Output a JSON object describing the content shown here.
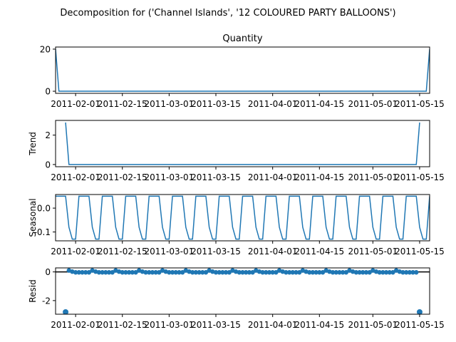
{
  "chart_data": {
    "type": "line",
    "suptitle": "Decomposition for ('Channel Islands', '12 COLOURED PARTY BALLOONS')",
    "x_start": "2011-01-26",
    "x_end": "2011-05-18",
    "x_ticks": [
      "2011-02-01",
      "2011-02-15",
      "2011-03-01",
      "2011-03-15",
      "2011-04-01",
      "2011-04-15",
      "2011-05-01",
      "2011-05-15"
    ],
    "line_color": "#1f77b4",
    "panels": [
      {
        "kind": "line",
        "title": "Quantity",
        "ylabel": "",
        "ylim": [
          -1,
          21
        ],
        "yticks": [
          0,
          20
        ],
        "series": {
          "x": [
            "2011-01-26",
            "2011-01-27",
            "2011-05-17",
            "2011-05-18"
          ],
          "y": [
            20,
            0,
            0,
            20
          ]
        }
      },
      {
        "kind": "line",
        "title": "",
        "ylabel": "Trend",
        "ylim": [
          -0.15,
          3.0
        ],
        "yticks": [
          0,
          2
        ],
        "series": {
          "x": [
            "2011-01-29",
            "2011-01-30",
            "2011-05-14",
            "2011-05-15"
          ],
          "y": [
            2.86,
            0,
            0,
            2.86
          ]
        }
      },
      {
        "kind": "seasonal",
        "title": "",
        "ylabel": "Seasonal",
        "ylim": [
          -0.137,
          0.057
        ],
        "yticks": [
          0.0,
          -0.1
        ],
        "period": 7,
        "first_high_date": "2011-01-26",
        "pattern": [
          0.05,
          0.05,
          0.05,
          0.05,
          -0.08,
          -0.13,
          -0.13
        ]
      },
      {
        "kind": "resid",
        "title": "",
        "ylabel": "Resid",
        "ylim": [
          -2.95,
          0.28
        ],
        "yticks": [
          0,
          -2
        ],
        "baseline": 0,
        "outliers": {
          "x": [
            "2011-01-29",
            "2011-05-15"
          ],
          "y": [
            -2.8,
            -2.8
          ]
        },
        "regular_start": "2011-01-30",
        "regular_end": "2011-05-14",
        "regular_pattern": [
          0.1,
          0.02,
          -0.03,
          -0.03,
          -0.03,
          -0.03,
          -0.03
        ]
      }
    ]
  }
}
